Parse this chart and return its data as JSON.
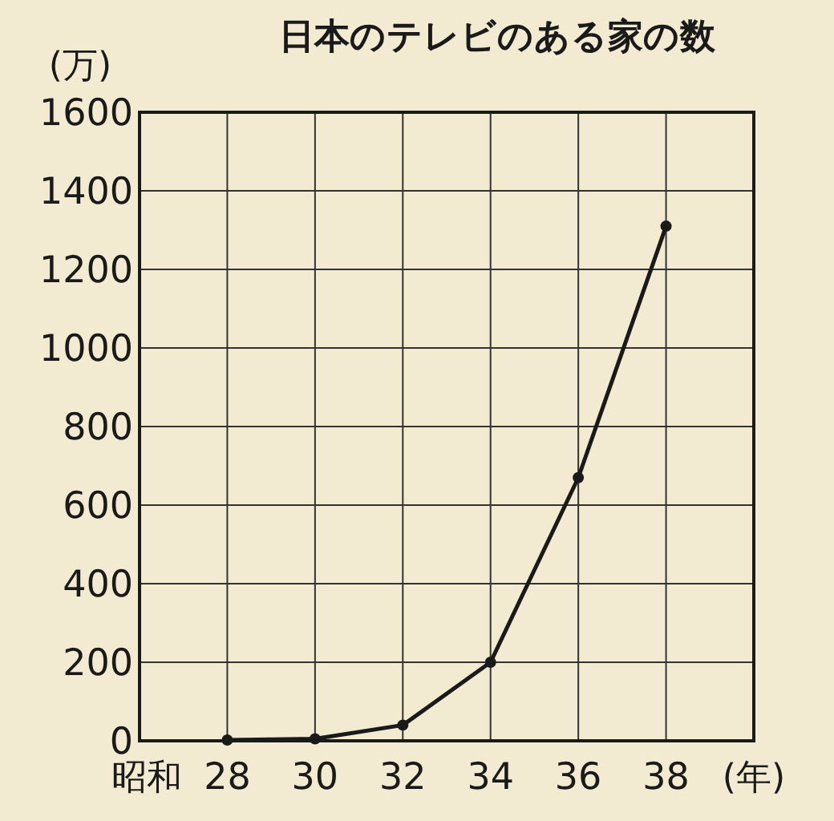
{
  "chart_data": {
    "type": "line",
    "title": "日本のテレビのある家の数",
    "ylabel": "(万)",
    "xlabel": "(年)",
    "annotations": [
      "昭和"
    ],
    "x": [
      28,
      30,
      32,
      34,
      36,
      38
    ],
    "series": [
      {
        "color": "#1a1a1a",
        "values": [
          2,
          5,
          40,
          200,
          670,
          1310
        ]
      }
    ],
    "xlim": [
      26,
      40
    ],
    "xticks": [
      28,
      30,
      32,
      34,
      36,
      38
    ],
    "ylim": [
      0,
      1600
    ],
    "yticks": [
      0,
      200,
      400,
      600,
      800,
      1000,
      1200,
      1400,
      1600
    ],
    "grid": true,
    "marker": "circle",
    "line_style": "solid"
  }
}
